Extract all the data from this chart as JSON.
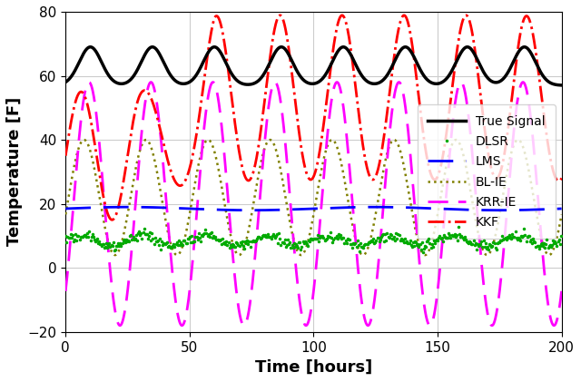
{
  "title": "",
  "xlabel": "Time [hours]",
  "ylabel": "Temperature [F]",
  "xlim": [
    0,
    200
  ],
  "ylim": [
    -20,
    80
  ],
  "yticks": [
    -20,
    0,
    20,
    40,
    60,
    80
  ],
  "xticks": [
    0,
    50,
    100,
    150,
    200
  ],
  "figsize": [
    6.4,
    4.21
  ],
  "dpi": 100,
  "legend_labels": [
    "True Signal",
    "DLSR",
    "LMS",
    "BL-IE",
    "KRR-IE",
    "KKF"
  ],
  "line_styles": {
    "true_signal": {
      "color": "#000000",
      "lw": 2.5,
      "ls": "-"
    },
    "dlsr": {
      "color": "#00aa00",
      "lw": 1.5,
      "ls": "dotted",
      "marker": ".",
      "ms": 4
    },
    "lms": {
      "color": "#0000ff",
      "lw": 2.0,
      "ls": "--"
    },
    "blie": {
      "color": "#808000",
      "lw": 1.8,
      "ls": "dotted"
    },
    "krrie": {
      "color": "#ff00ff",
      "lw": 2.0,
      "ls": "--"
    },
    "kkf": {
      "color": "#ff0000",
      "lw": 2.0,
      "ls": "-."
    }
  },
  "grid_color": "#cccccc",
  "background_color": "#ffffff"
}
